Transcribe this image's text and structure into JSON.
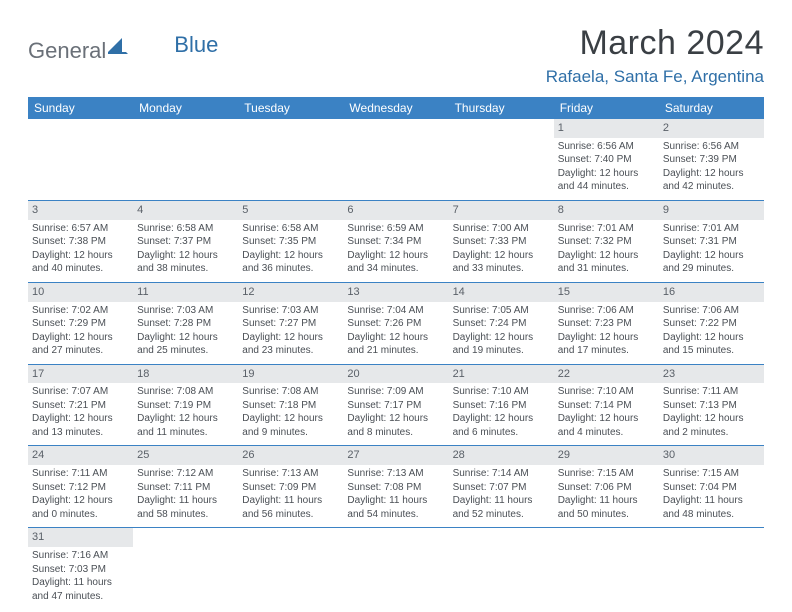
{
  "logo": {
    "part1": "General",
    "part2": "Blue"
  },
  "title": "March 2024",
  "location": "Rafaela, Santa Fe, Argentina",
  "colors": {
    "header_bg": "#3b82c4",
    "header_text": "#ffffff",
    "daynum_bg": "#e6e8ea",
    "cell_border": "#3b82c4",
    "title_color": "#3a3f44",
    "location_color": "#2f6fa7",
    "body_text": "#4a4f55"
  },
  "weekdays": [
    "Sunday",
    "Monday",
    "Tuesday",
    "Wednesday",
    "Thursday",
    "Friday",
    "Saturday"
  ],
  "weeks": [
    [
      null,
      null,
      null,
      null,
      null,
      {
        "n": "1",
        "sr": "Sunrise: 6:56 AM",
        "ss": "Sunset: 7:40 PM",
        "dl": "Daylight: 12 hours and 44 minutes."
      },
      {
        "n": "2",
        "sr": "Sunrise: 6:56 AM",
        "ss": "Sunset: 7:39 PM",
        "dl": "Daylight: 12 hours and 42 minutes."
      }
    ],
    [
      {
        "n": "3",
        "sr": "Sunrise: 6:57 AM",
        "ss": "Sunset: 7:38 PM",
        "dl": "Daylight: 12 hours and 40 minutes."
      },
      {
        "n": "4",
        "sr": "Sunrise: 6:58 AM",
        "ss": "Sunset: 7:37 PM",
        "dl": "Daylight: 12 hours and 38 minutes."
      },
      {
        "n": "5",
        "sr": "Sunrise: 6:58 AM",
        "ss": "Sunset: 7:35 PM",
        "dl": "Daylight: 12 hours and 36 minutes."
      },
      {
        "n": "6",
        "sr": "Sunrise: 6:59 AM",
        "ss": "Sunset: 7:34 PM",
        "dl": "Daylight: 12 hours and 34 minutes."
      },
      {
        "n": "7",
        "sr": "Sunrise: 7:00 AM",
        "ss": "Sunset: 7:33 PM",
        "dl": "Daylight: 12 hours and 33 minutes."
      },
      {
        "n": "8",
        "sr": "Sunrise: 7:01 AM",
        "ss": "Sunset: 7:32 PM",
        "dl": "Daylight: 12 hours and 31 minutes."
      },
      {
        "n": "9",
        "sr": "Sunrise: 7:01 AM",
        "ss": "Sunset: 7:31 PM",
        "dl": "Daylight: 12 hours and 29 minutes."
      }
    ],
    [
      {
        "n": "10",
        "sr": "Sunrise: 7:02 AM",
        "ss": "Sunset: 7:29 PM",
        "dl": "Daylight: 12 hours and 27 minutes."
      },
      {
        "n": "11",
        "sr": "Sunrise: 7:03 AM",
        "ss": "Sunset: 7:28 PM",
        "dl": "Daylight: 12 hours and 25 minutes."
      },
      {
        "n": "12",
        "sr": "Sunrise: 7:03 AM",
        "ss": "Sunset: 7:27 PM",
        "dl": "Daylight: 12 hours and 23 minutes."
      },
      {
        "n": "13",
        "sr": "Sunrise: 7:04 AM",
        "ss": "Sunset: 7:26 PM",
        "dl": "Daylight: 12 hours and 21 minutes."
      },
      {
        "n": "14",
        "sr": "Sunrise: 7:05 AM",
        "ss": "Sunset: 7:24 PM",
        "dl": "Daylight: 12 hours and 19 minutes."
      },
      {
        "n": "15",
        "sr": "Sunrise: 7:06 AM",
        "ss": "Sunset: 7:23 PM",
        "dl": "Daylight: 12 hours and 17 minutes."
      },
      {
        "n": "16",
        "sr": "Sunrise: 7:06 AM",
        "ss": "Sunset: 7:22 PM",
        "dl": "Daylight: 12 hours and 15 minutes."
      }
    ],
    [
      {
        "n": "17",
        "sr": "Sunrise: 7:07 AM",
        "ss": "Sunset: 7:21 PM",
        "dl": "Daylight: 12 hours and 13 minutes."
      },
      {
        "n": "18",
        "sr": "Sunrise: 7:08 AM",
        "ss": "Sunset: 7:19 PM",
        "dl": "Daylight: 12 hours and 11 minutes."
      },
      {
        "n": "19",
        "sr": "Sunrise: 7:08 AM",
        "ss": "Sunset: 7:18 PM",
        "dl": "Daylight: 12 hours and 9 minutes."
      },
      {
        "n": "20",
        "sr": "Sunrise: 7:09 AM",
        "ss": "Sunset: 7:17 PM",
        "dl": "Daylight: 12 hours and 8 minutes."
      },
      {
        "n": "21",
        "sr": "Sunrise: 7:10 AM",
        "ss": "Sunset: 7:16 PM",
        "dl": "Daylight: 12 hours and 6 minutes."
      },
      {
        "n": "22",
        "sr": "Sunrise: 7:10 AM",
        "ss": "Sunset: 7:14 PM",
        "dl": "Daylight: 12 hours and 4 minutes."
      },
      {
        "n": "23",
        "sr": "Sunrise: 7:11 AM",
        "ss": "Sunset: 7:13 PM",
        "dl": "Daylight: 12 hours and 2 minutes."
      }
    ],
    [
      {
        "n": "24",
        "sr": "Sunrise: 7:11 AM",
        "ss": "Sunset: 7:12 PM",
        "dl": "Daylight: 12 hours and 0 minutes."
      },
      {
        "n": "25",
        "sr": "Sunrise: 7:12 AM",
        "ss": "Sunset: 7:11 PM",
        "dl": "Daylight: 11 hours and 58 minutes."
      },
      {
        "n": "26",
        "sr": "Sunrise: 7:13 AM",
        "ss": "Sunset: 7:09 PM",
        "dl": "Daylight: 11 hours and 56 minutes."
      },
      {
        "n": "27",
        "sr": "Sunrise: 7:13 AM",
        "ss": "Sunset: 7:08 PM",
        "dl": "Daylight: 11 hours and 54 minutes."
      },
      {
        "n": "28",
        "sr": "Sunrise: 7:14 AM",
        "ss": "Sunset: 7:07 PM",
        "dl": "Daylight: 11 hours and 52 minutes."
      },
      {
        "n": "29",
        "sr": "Sunrise: 7:15 AM",
        "ss": "Sunset: 7:06 PM",
        "dl": "Daylight: 11 hours and 50 minutes."
      },
      {
        "n": "30",
        "sr": "Sunrise: 7:15 AM",
        "ss": "Sunset: 7:04 PM",
        "dl": "Daylight: 11 hours and 48 minutes."
      }
    ],
    [
      {
        "n": "31",
        "sr": "Sunrise: 7:16 AM",
        "ss": "Sunset: 7:03 PM",
        "dl": "Daylight: 11 hours and 47 minutes."
      },
      null,
      null,
      null,
      null,
      null,
      null
    ]
  ]
}
